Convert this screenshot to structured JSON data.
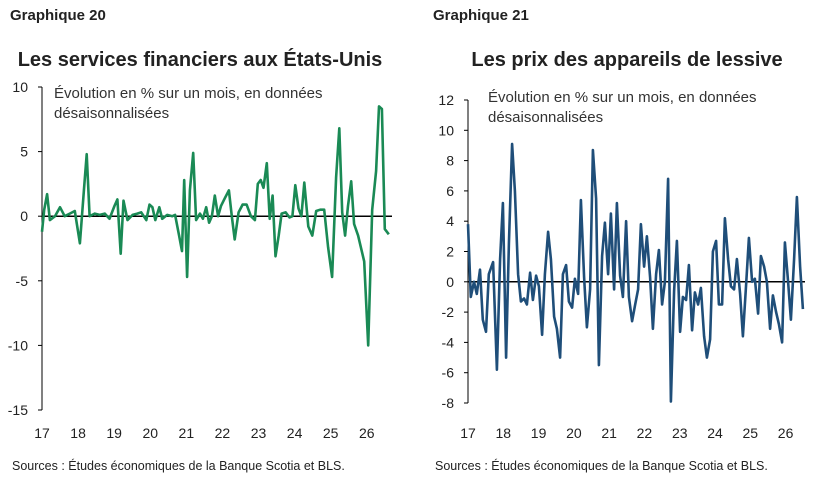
{
  "chart_data": [
    {
      "type": "line",
      "label": "Graphique 20",
      "title": "Les services financiers aux États-Unis",
      "subtitle": "Évolution en % sur un mois, en données désaisonnalisées",
      "source": "Sources : Études économiques de la Banque Scotia et BLS.",
      "color": "#1a8a55",
      "xlim": [
        17,
        26.7
      ],
      "xticks": [
        17,
        18,
        19,
        20,
        21,
        22,
        23,
        24,
        25,
        26
      ],
      "ylim": [
        -15,
        10
      ],
      "yticks": [
        10,
        5,
        0,
        -5,
        -10,
        -15
      ],
      "x": [
        17.0,
        17.06,
        17.14,
        17.22,
        17.36,
        17.5,
        17.63,
        17.77,
        17.91,
        18.05,
        18.16,
        18.24,
        18.32,
        18.46,
        18.6,
        18.74,
        18.87,
        19.01,
        19.09,
        19.18,
        19.26,
        19.37,
        19.51,
        19.64,
        19.75,
        19.89,
        19.98,
        20.06,
        20.14,
        20.25,
        20.33,
        20.47,
        20.61,
        20.69,
        20.8,
        20.88,
        20.94,
        21.02,
        21.1,
        21.19,
        21.27,
        21.38,
        21.46,
        21.55,
        21.63,
        21.71,
        21.79,
        21.88,
        21.96,
        22.07,
        22.18,
        22.26,
        22.34,
        22.45,
        22.56,
        22.67,
        22.79,
        22.9,
        22.98,
        23.06,
        23.14,
        23.23,
        23.31,
        23.39,
        23.47,
        23.56,
        23.64,
        23.75,
        23.86,
        23.94,
        24.02,
        24.11,
        24.19,
        24.27,
        24.38,
        24.49,
        24.6,
        24.71,
        24.82,
        24.93,
        25.04,
        25.15,
        25.24,
        25.32,
        25.4,
        25.48,
        25.57,
        25.65,
        25.76,
        25.93,
        26.04,
        26.15,
        26.26,
        26.34,
        26.42,
        26.5,
        26.61
      ],
      "values": [
        -1.2,
        0.5,
        1.7,
        -0.3,
        0,
        0.7,
        0,
        0.2,
        0.4,
        -2.1,
        2,
        4.8,
        0,
        0.2,
        0.1,
        0.2,
        -0.2,
        0.8,
        1.3,
        -2.9,
        1.2,
        -0.3,
        0.1,
        0.2,
        0.3,
        -0.3,
        0.9,
        0.7,
        -0.3,
        0.7,
        -0.2,
        0.1,
        0,
        0.1,
        -1.5,
        -2.7,
        2.8,
        -4.7,
        2,
        4.9,
        -0.3,
        0.2,
        -0.2,
        0.7,
        -0.5,
        0,
        1.6,
        0,
        0.8,
        1.4,
        2,
        0,
        -1.8,
        0.3,
        0.9,
        0.9,
        0,
        -0.3,
        2.5,
        2.8,
        2.2,
        4.1,
        -0.2,
        1.6,
        -3.1,
        -1.5,
        0.2,
        0.3,
        -0.1,
        0,
        2.4,
        0.6,
        0,
        2.6,
        -0.8,
        -1.5,
        0.4,
        0.5,
        0.5,
        -2.4,
        -4.7,
        3,
        6.8,
        0.3,
        -1.5,
        0.8,
        2.7,
        -0.6,
        -1.5,
        -3.5,
        -10,
        0.5,
        3.5,
        8.5,
        8.3,
        -1,
        -1.4
      ]
    },
    {
      "type": "line",
      "label": "Graphique 21",
      "title": "Les prix des appareils de lessive",
      "subtitle": "Évolution en % sur un mois, en données désaisonnalisées",
      "source": "Sources : Études économiques de la Banque Scotia et BLS.",
      "color": "#1f4e79",
      "xlim": [
        17,
        26.55
      ],
      "xticks": [
        17,
        18,
        19,
        20,
        21,
        22,
        23,
        24,
        25,
        26
      ],
      "ylim": [
        -8,
        12
      ],
      "yticks": [
        12,
        10,
        8,
        6,
        4,
        2,
        0,
        -2,
        -4,
        -6,
        -8
      ],
      "x": [
        17.0,
        17.08,
        17.17,
        17.25,
        17.34,
        17.42,
        17.51,
        17.59,
        17.71,
        17.82,
        17.91,
        17.99,
        18.08,
        18.16,
        18.25,
        18.33,
        18.42,
        18.5,
        18.59,
        18.67,
        18.76,
        18.84,
        18.93,
        19.01,
        19.1,
        19.18,
        19.27,
        19.35,
        19.44,
        19.52,
        19.61,
        19.69,
        19.78,
        19.86,
        19.95,
        20.03,
        20.12,
        20.2,
        20.29,
        20.37,
        20.46,
        20.54,
        20.63,
        20.71,
        20.8,
        20.88,
        20.97,
        21.05,
        21.14,
        21.22,
        21.31,
        21.39,
        21.48,
        21.56,
        21.65,
        21.73,
        21.82,
        21.9,
        21.99,
        22.07,
        22.16,
        22.24,
        22.33,
        22.41,
        22.5,
        22.58,
        22.67,
        22.75,
        22.84,
        22.92,
        23.01,
        23.09,
        23.18,
        23.26,
        23.35,
        23.43,
        23.52,
        23.6,
        23.69,
        23.77,
        23.86,
        23.94,
        24.03,
        24.11,
        24.2,
        24.28,
        24.37,
        24.45,
        24.54,
        24.62,
        24.71,
        24.79,
        24.88,
        24.96,
        25.05,
        25.13,
        25.22,
        25.3,
        25.39,
        25.47,
        25.56,
        25.64,
        25.73,
        25.81,
        25.9,
        25.98,
        26.07,
        26.15,
        26.24,
        26.32,
        26.41,
        26.49
      ],
      "values": [
        3.8,
        -1,
        0,
        -0.8,
        0.8,
        -2.5,
        -3.3,
        0.5,
        1.3,
        -5.8,
        1.5,
        5.2,
        -5,
        2.5,
        9.1,
        6,
        0.5,
        -1.3,
        -1.1,
        -1.5,
        0.6,
        -1.2,
        0.4,
        -0.3,
        -3.5,
        0.5,
        3.3,
        1.5,
        -2.3,
        -3.1,
        -5,
        0.5,
        1.1,
        -1.3,
        -1.7,
        0.2,
        -0.8,
        5.4,
        0.3,
        -3,
        -0.5,
        8.7,
        5.5,
        -5.5,
        1.7,
        3.9,
        0.5,
        4.5,
        -0.5,
        5.2,
        0.4,
        -1,
        4,
        -1,
        -2.6,
        -1.6,
        -0.5,
        3.8,
        1,
        3,
        0.3,
        -3.1,
        0.5,
        2.1,
        -1.5,
        0,
        6.8,
        -7.9,
        -0.6,
        2.7,
        -3.3,
        -1,
        -1.2,
        1.1,
        -3.2,
        -0.7,
        -1.5,
        -0.4,
        -3.6,
        -5,
        -3.8,
        2,
        2.7,
        -1.5,
        -1.5,
        4.2,
        1.5,
        -0.3,
        -0.5,
        1.5,
        -0.8,
        -3.6,
        -0.2,
        2.9,
        0,
        0.2,
        -2.1,
        1.7,
        1,
        0,
        -3.1,
        -0.9,
        -2,
        -2.8,
        -4,
        2.6,
        0,
        -2.5,
        1.5,
        5.6,
        1,
        -1.8
      ]
    }
  ]
}
